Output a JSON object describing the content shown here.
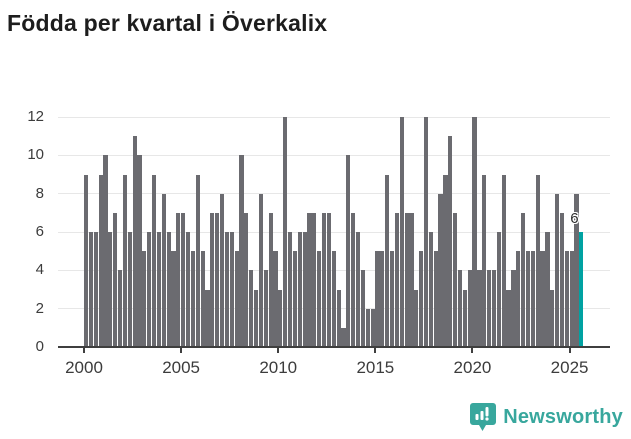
{
  "title": "Födda per kvartal i Överkalix",
  "footer": {
    "brand": "Newsworthy"
  },
  "chart_data": {
    "type": "bar",
    "title": "Födda per kvartal i Överkalix",
    "x_start": "2000 Q1",
    "x_end": "2025 Q3",
    "x": [
      "2000Q1",
      "2000Q2",
      "2000Q3",
      "2000Q4",
      "2001Q1",
      "2001Q2",
      "2001Q3",
      "2001Q4",
      "2002Q1",
      "2002Q2",
      "2002Q3",
      "2002Q4",
      "2003Q1",
      "2003Q2",
      "2003Q3",
      "2003Q4",
      "2004Q1",
      "2004Q2",
      "2004Q3",
      "2004Q4",
      "2005Q1",
      "2005Q2",
      "2005Q3",
      "2005Q4",
      "2006Q1",
      "2006Q2",
      "2006Q3",
      "2006Q4",
      "2007Q1",
      "2007Q2",
      "2007Q3",
      "2007Q4",
      "2008Q1",
      "2008Q2",
      "2008Q3",
      "2008Q4",
      "2009Q1",
      "2009Q2",
      "2009Q3",
      "2009Q4",
      "2010Q1",
      "2010Q2",
      "2010Q3",
      "2010Q4",
      "2011Q1",
      "2011Q2",
      "2011Q3",
      "2011Q4",
      "2012Q1",
      "2012Q2",
      "2012Q3",
      "2012Q4",
      "2013Q1",
      "2013Q2",
      "2013Q3",
      "2013Q4",
      "2014Q1",
      "2014Q2",
      "2014Q3",
      "2014Q4",
      "2015Q1",
      "2015Q2",
      "2015Q3",
      "2015Q4",
      "2016Q1",
      "2016Q2",
      "2016Q3",
      "2016Q4",
      "2017Q1",
      "2017Q2",
      "2017Q3",
      "2017Q4",
      "2018Q1",
      "2018Q2",
      "2018Q3",
      "2018Q4",
      "2019Q1",
      "2019Q2",
      "2019Q3",
      "2019Q4",
      "2020Q1",
      "2020Q2",
      "2020Q3",
      "2020Q4",
      "2021Q1",
      "2021Q2",
      "2021Q3",
      "2021Q4",
      "2022Q1",
      "2022Q2",
      "2022Q3",
      "2022Q4",
      "2023Q1",
      "2023Q2",
      "2023Q3",
      "2023Q4",
      "2024Q1",
      "2024Q2",
      "2024Q3",
      "2024Q4",
      "2025Q1",
      "2025Q2",
      "2025Q3"
    ],
    "values": [
      9,
      6,
      6,
      9,
      10,
      6,
      7,
      4,
      9,
      6,
      11,
      10,
      5,
      6,
      9,
      6,
      8,
      6,
      5,
      7,
      7,
      6,
      5,
      9,
      5,
      3,
      7,
      7,
      8,
      6,
      6,
      5,
      10,
      7,
      4,
      3,
      8,
      4,
      7,
      5,
      3,
      12,
      6,
      5,
      6,
      6,
      7,
      7,
      5,
      7,
      7,
      5,
      3,
      1,
      10,
      7,
      6,
      4,
      2,
      2,
      5,
      5,
      9,
      5,
      7,
      12,
      7,
      7,
      3,
      5,
      12,
      6,
      5,
      8,
      9,
      11,
      7,
      4,
      3,
      4,
      12,
      4,
      9,
      4,
      4,
      6,
      9,
      3,
      4,
      5,
      7,
      5,
      5,
      9,
      5,
      6,
      3,
      8,
      7,
      5,
      5,
      8,
      6
    ],
    "ylim": [
      0,
      12
    ],
    "yticks": [
      0,
      2,
      4,
      6,
      8,
      10,
      12
    ],
    "xticks": [
      {
        "label": "2000",
        "index": 0
      },
      {
        "label": "2005",
        "index": 20
      },
      {
        "label": "2010",
        "index": 40
      },
      {
        "label": "2015",
        "index": 60
      },
      {
        "label": "2020",
        "index": 80
      },
      {
        "label": "2025",
        "index": 100
      }
    ],
    "grid": true,
    "legend": false,
    "bar_color": "#6b6b70",
    "highlight_color": "#00a2a2",
    "highlight_index": 102,
    "last_value_label": "6"
  }
}
